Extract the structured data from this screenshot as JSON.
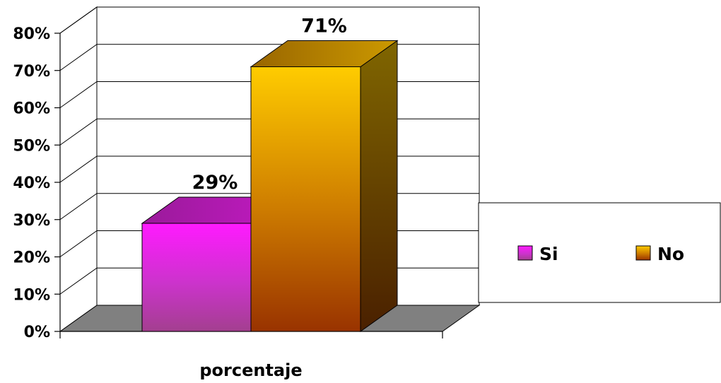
{
  "chart_data": {
    "type": "bar",
    "categories": [
      "porcentaje"
    ],
    "xlabel": "porcentaje",
    "ylim": [
      0,
      80
    ],
    "y_ticks": [
      "0%",
      "10%",
      "20%",
      "30%",
      "40%",
      "50%",
      "60%",
      "70%",
      "80%"
    ],
    "grid": true,
    "legend_position": "right",
    "series": [
      {
        "name": "Si",
        "values": [
          29
        ],
        "label": "29%",
        "color": "#ff33ff"
      },
      {
        "name": "No",
        "values": [
          71
        ],
        "label": "71%",
        "color": "#ffcc00"
      }
    ]
  }
}
